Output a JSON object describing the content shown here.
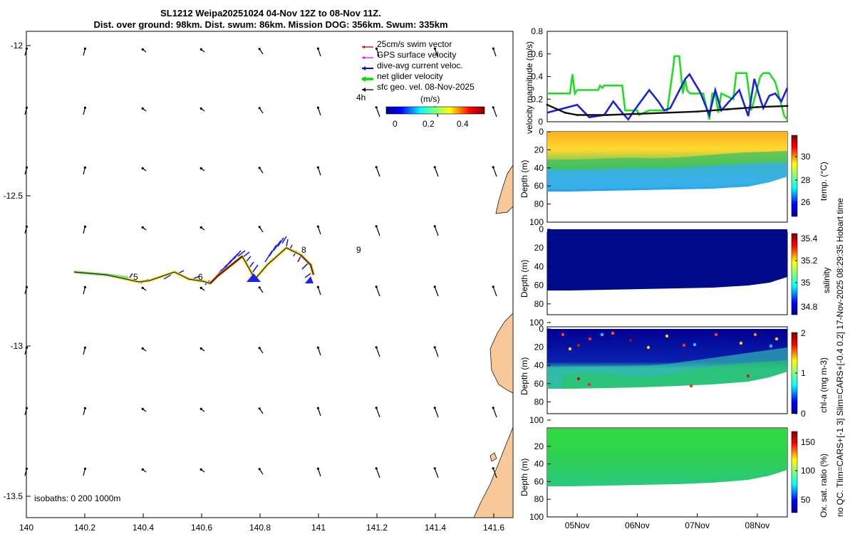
{
  "header": {
    "line1": "SL1212 Weipa20251024 04-Nov 12Z to 08-Nov 11Z.",
    "line2": "Dist. over ground: 98km. Dist. swum: 86km. Mission DOG: 356km. Swum: 335km"
  },
  "side_note": "no QC. Tlim=CARS+[-1 3] Slim=CARS+[-0.4 0.2] 17-Nov-2025 08:29:35 Hobart time",
  "map": {
    "lon_ticks": [
      "140",
      "140.2",
      "140.4",
      "140.6",
      "140.8",
      "141",
      "141.2",
      "141.4",
      "141.6"
    ],
    "lat_ticks": [
      "-12",
      "-12.5",
      "-13",
      "-13.5"
    ],
    "isobaths": "isobaths: 0   200  1000m",
    "day_labels": [
      "5",
      "6",
      "8",
      "9"
    ],
    "time_step": "4h",
    "legend": [
      {
        "label": "25cm/s swim vector",
        "color": "#d00000"
      },
      {
        "label": "GPS surface velocity",
        "color": "#ff00ff"
      },
      {
        "label": "dive-avg current veloc.",
        "color": "#0000ff"
      },
      {
        "label": "net glider velocity",
        "color": "#00dd00"
      },
      {
        "label": "sfc geo. vel. 08-Nov-2025",
        "color": "#000000"
      }
    ],
    "colorbar_title": "(m/s)",
    "colorbar_ticks": [
      "0",
      "0.2",
      "0.4"
    ],
    "land_color": "#f8c898"
  },
  "chart_data": [
    {
      "type": "line",
      "ylabel": "velocity magnitude (m/s)",
      "ylim": [
        0,
        0.8
      ],
      "yticks": [
        "0",
        "0.2",
        "0.4",
        "0.6",
        "0.8"
      ],
      "xlim": [
        4.5,
        8.5
      ],
      "series": [
        {
          "name": "net glider velocity",
          "color": "#22dd22",
          "x": [
            4.5,
            4.88,
            4.92,
            4.96,
            5.0,
            5.35,
            5.38,
            5.42,
            5.45,
            5.75,
            5.8,
            6.0,
            6.03,
            6.2,
            6.3,
            6.5,
            6.6,
            6.62,
            6.7,
            6.76,
            6.8,
            6.83,
            6.88,
            7.1,
            7.2,
            7.25,
            7.3,
            7.35,
            7.4,
            7.6,
            7.65,
            7.82,
            7.9,
            8.0,
            8.05,
            8.1,
            8.2,
            8.3,
            8.4,
            8.45,
            8.5
          ],
          "y": [
            0.25,
            0.25,
            0.42,
            0.25,
            0.28,
            0.28,
            0.32,
            0.3,
            0.32,
            0.32,
            0.1,
            0.1,
            0.06,
            0.1,
            0.1,
            0.1,
            0.48,
            0.58,
            0.58,
            0.25,
            0.37,
            0.28,
            0.25,
            0.25,
            0.02,
            0.25,
            0.25,
            0.08,
            0.25,
            0.2,
            0.43,
            0.43,
            0.1,
            0.3,
            0.4,
            0.43,
            0.43,
            0.35,
            0.15,
            0.05,
            0.02
          ]
        },
        {
          "name": "dive-avg current veloc.",
          "color": "#1a22dd",
          "x": [
            4.5,
            5.0,
            5.2,
            5.45,
            5.6,
            5.75,
            5.85,
            5.95,
            6.2,
            6.35,
            6.45,
            6.55,
            6.8,
            6.87,
            7.05,
            7.2,
            7.3,
            7.4,
            7.6,
            7.7,
            7.85,
            7.95,
            8.05,
            8.1,
            8.2,
            8.3,
            8.4,
            8.5
          ],
          "y": [
            0.08,
            0.15,
            0.04,
            0.06,
            0.18,
            0.08,
            0.02,
            0.1,
            0.28,
            0.18,
            0.1,
            0.12,
            0.38,
            0.42,
            0.26,
            0.06,
            0.28,
            0.1,
            0.22,
            0.28,
            0.05,
            0.38,
            0.2,
            0.12,
            0.23,
            0.25,
            0.18,
            0.3
          ]
        },
        {
          "name": "sfc geo. vel.",
          "color": "#111111",
          "x": [
            4.5,
            4.8,
            5.0,
            5.5,
            6.0,
            6.5,
            7.0,
            7.5,
            8.0,
            8.5
          ],
          "y": [
            0.15,
            0.08,
            0.06,
            0.06,
            0.07,
            0.08,
            0.09,
            0.11,
            0.13,
            0.14
          ]
        }
      ]
    },
    {
      "type": "heatmap",
      "ylabel": "Depth (m)",
      "clabel": "temp. (°C)",
      "yticks": [
        "0",
        "20",
        "40",
        "60",
        "80",
        "100"
      ],
      "cticks": [
        "26",
        "28",
        "30"
      ]
    },
    {
      "type": "heatmap",
      "ylabel": "Depth (m)",
      "clabel": "salinity",
      "yticks": [
        "0",
        "20",
        "40",
        "60",
        "80",
        "100"
      ],
      "cticks": [
        "34.8",
        "35",
        "35.2",
        "35.4"
      ]
    },
    {
      "type": "heatmap",
      "ylabel": "Depth (m)",
      "clabel": "chl-a (mg m-3)",
      "yticks": [
        "0",
        "20",
        "40",
        "60",
        "80",
        "100"
      ],
      "cticks": [
        "0",
        "1",
        "2"
      ]
    },
    {
      "type": "heatmap",
      "ylabel": "Depth (m)",
      "clabel": "Ox. sat. ratio (%)",
      "yticks": [
        "20",
        "40",
        "60",
        "80",
        "100"
      ],
      "cticks": [
        "50",
        "100",
        "150"
      ],
      "xticks": [
        "05Nov",
        "06Nov",
        "07Nov",
        "08Nov"
      ]
    }
  ]
}
